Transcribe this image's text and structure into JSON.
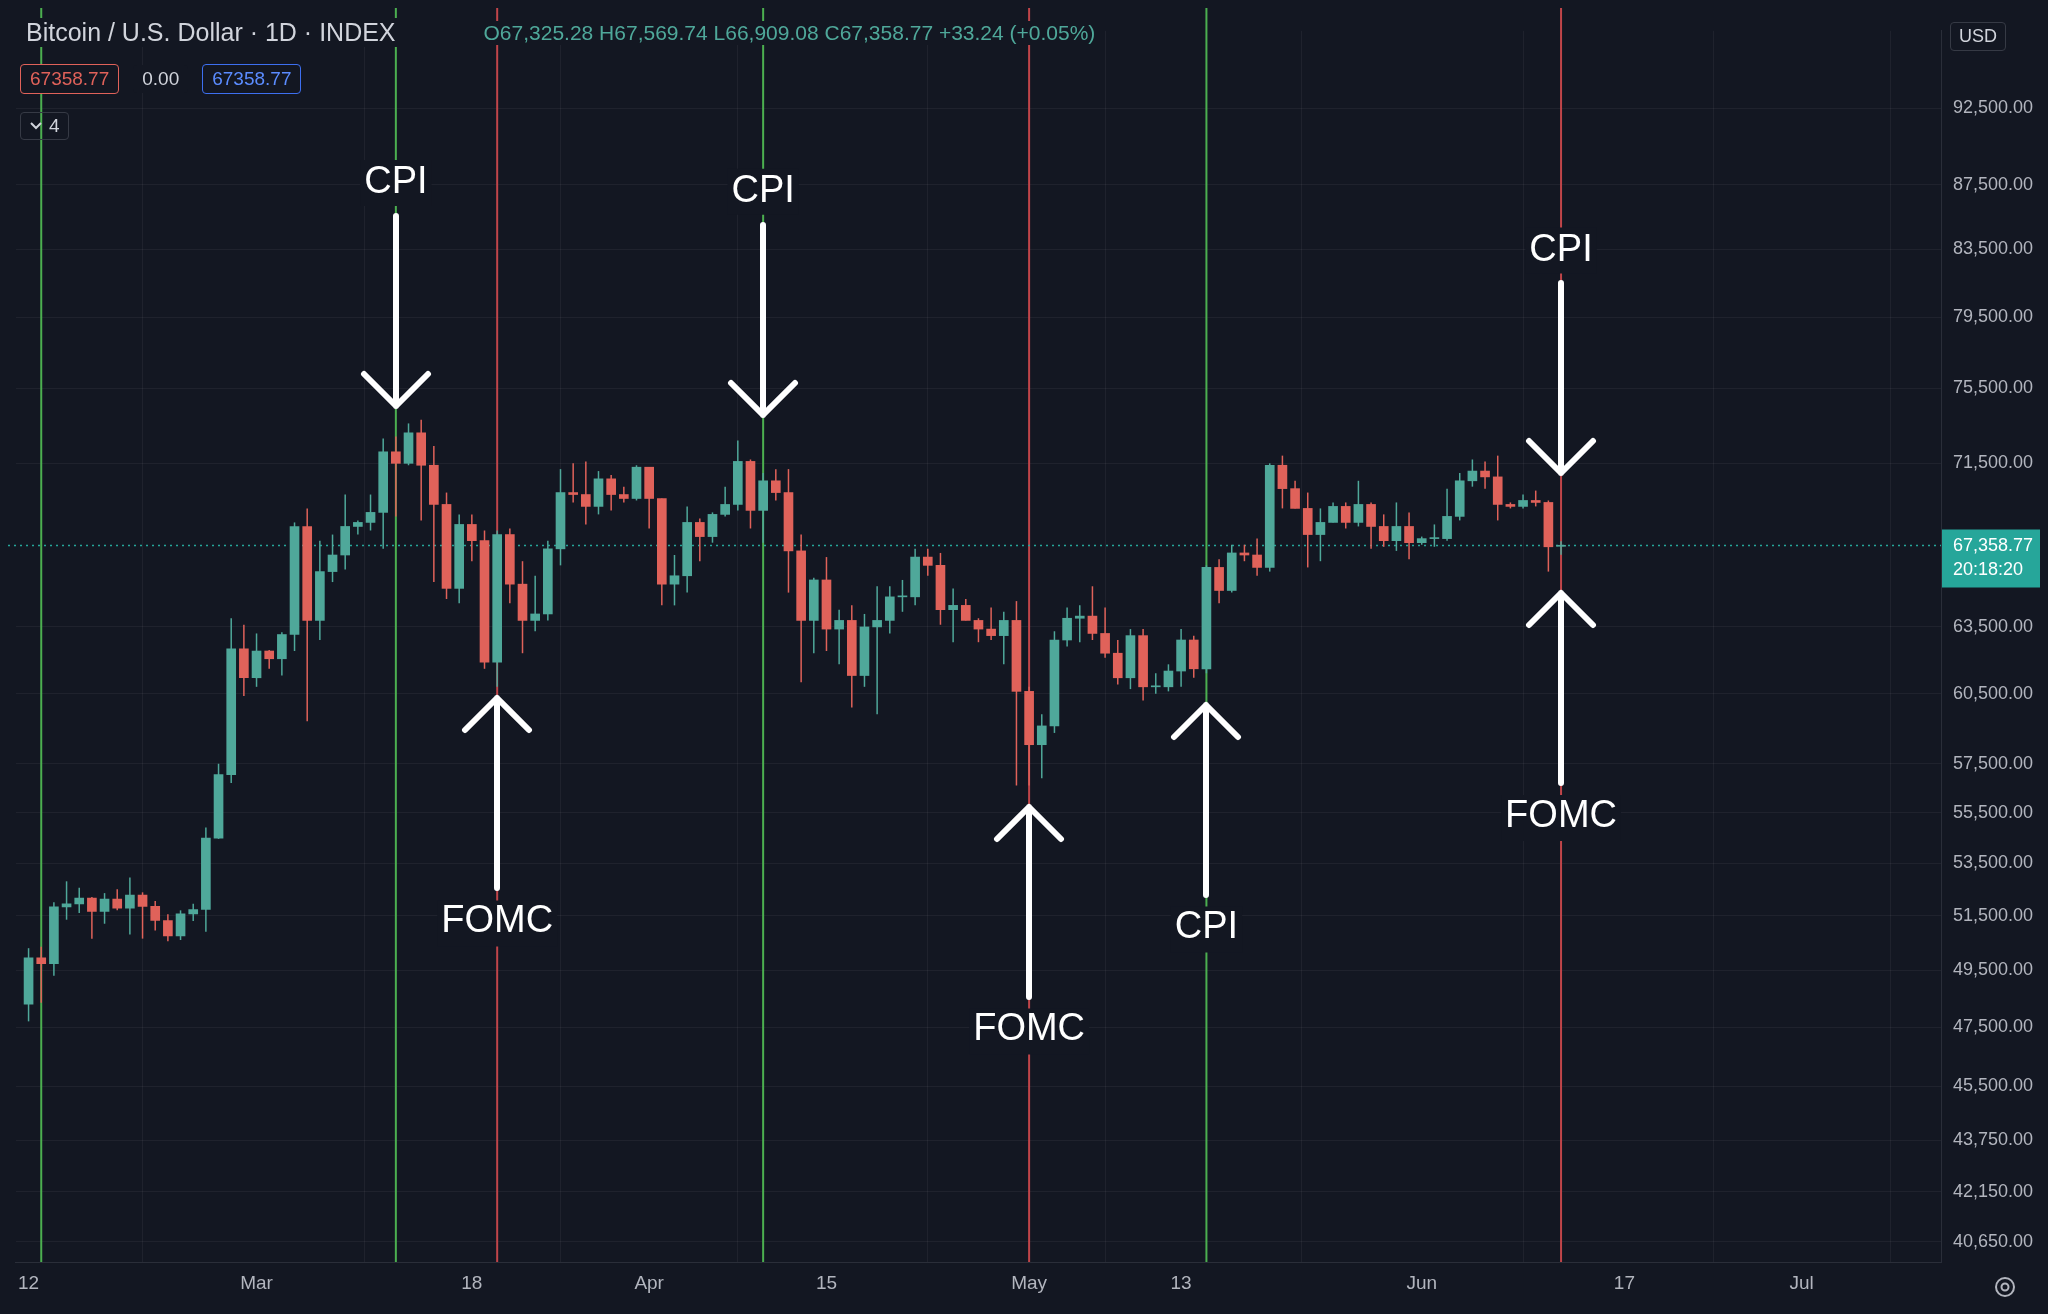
{
  "chart_data": {
    "type": "candlestick",
    "title": "Bitcoin / U.S. Dollar · 1D · INDEX",
    "x": [
      "--02-12",
      "--02-13",
      "--02-14",
      "--02-15",
      "--02-16",
      "--02-17",
      "--02-18",
      "--02-19",
      "--02-20",
      "--02-21",
      "--02-22",
      "--02-23",
      "--02-24",
      "--02-25",
      "--02-26",
      "--02-27",
      "--02-28",
      "--02-29",
      "--03-01",
      "--03-02",
      "--03-03",
      "--03-04",
      "--03-05",
      "--03-06",
      "--03-07",
      "--03-08",
      "--03-09",
      "--03-10",
      "--03-11",
      "--03-12",
      "--03-13",
      "--03-14",
      "--03-15",
      "--03-16",
      "--03-17",
      "--03-18",
      "--03-19",
      "--03-20",
      "--03-21",
      "--03-22",
      "--03-23",
      "--03-24",
      "--03-25",
      "--03-26",
      "--03-27",
      "--03-28",
      "--03-29",
      "--03-30",
      "--03-31",
      "--04-01",
      "--04-02",
      "--04-03",
      "--04-04",
      "--04-05",
      "--04-06",
      "--04-07",
      "--04-08",
      "--04-09",
      "--04-10",
      "--04-11",
      "--04-12",
      "--04-13",
      "--04-14",
      "--04-15",
      "--04-16",
      "--04-17",
      "--04-18",
      "--04-19",
      "--04-20",
      "--04-21",
      "--04-22",
      "--04-23",
      "--04-24",
      "--04-25",
      "--04-26",
      "--04-27",
      "--04-28",
      "--04-29",
      "--04-30",
      "--05-01",
      "--05-02",
      "--05-03",
      "--05-04",
      "--05-05",
      "--05-06",
      "--05-07",
      "--05-08",
      "--05-09",
      "--05-10",
      "--05-11",
      "--05-12",
      "--05-13",
      "--05-14",
      "--05-15",
      "--05-16",
      "--05-17",
      "--05-18",
      "--05-19",
      "--05-20",
      "--05-21",
      "--05-22",
      "--05-23",
      "--05-24",
      "--05-25",
      "--05-26",
      "--05-27",
      "--05-28",
      "--05-29",
      "--05-30",
      "--05-31",
      "--06-01",
      "--06-02",
      "--06-03",
      "--06-04",
      "--06-05",
      "--06-06",
      "--06-07",
      "--06-08",
      "--06-09",
      "--06-10",
      "--06-11",
      "--06-12"
    ],
    "ohlc": [
      [
        48300,
        50300,
        47700,
        49950
      ],
      [
        49950,
        50350,
        48350,
        49740
      ],
      [
        49740,
        52000,
        49300,
        51830
      ],
      [
        51830,
        52800,
        51350,
        51940
      ],
      [
        51940,
        52550,
        51600,
        52160
      ],
      [
        52160,
        52200,
        50650,
        51660
      ],
      [
        51660,
        52350,
        51200,
        52120
      ],
      [
        52120,
        52500,
        51700,
        51780
      ],
      [
        51780,
        52950,
        50800,
        52280
      ],
      [
        52280,
        52380,
        50650,
        51850
      ],
      [
        51850,
        52050,
        50950,
        51320
      ],
      [
        51320,
        51550,
        50550,
        50750
      ],
      [
        50750,
        51700,
        50600,
        51570
      ],
      [
        51570,
        51950,
        51300,
        51730
      ],
      [
        51730,
        54900,
        50900,
        54480
      ],
      [
        54480,
        57500,
        54450,
        57050
      ],
      [
        57050,
        63900,
        56700,
        62500
      ],
      [
        62500,
        63600,
        60400,
        61200
      ],
      [
        61200,
        63200,
        60800,
        62400
      ],
      [
        62400,
        62450,
        61600,
        62050
      ],
      [
        62050,
        63250,
        61300,
        63150
      ],
      [
        63150,
        68500,
        62400,
        68300
      ],
      [
        68300,
        69200,
        59300,
        63800
      ],
      [
        63800,
        67600,
        62900,
        66100
      ],
      [
        66100,
        67900,
        65600,
        66900
      ],
      [
        66900,
        69900,
        66200,
        68300
      ],
      [
        68300,
        68600,
        67900,
        68500
      ],
      [
        68500,
        69900,
        68100,
        69000
      ],
      [
        69000,
        72800,
        67200,
        72100
      ],
      [
        72100,
        72900,
        68800,
        71500
      ],
      [
        71500,
        73600,
        71400,
        73100
      ],
      [
        73100,
        73800,
        68600,
        71400
      ],
      [
        71400,
        72400,
        65600,
        69400
      ],
      [
        69400,
        70000,
        64800,
        65300
      ],
      [
        65300,
        68900,
        64600,
        68400
      ],
      [
        68400,
        68900,
        66600,
        67600
      ],
      [
        67600,
        68100,
        61600,
        61900
      ],
      [
        61900,
        68100,
        60800,
        67900
      ],
      [
        67900,
        68200,
        64600,
        65500
      ],
      [
        65500,
        66600,
        62300,
        63800
      ],
      [
        63800,
        65900,
        63300,
        64100
      ],
      [
        64100,
        67600,
        63800,
        67200
      ],
      [
        67200,
        71200,
        66400,
        70000
      ],
      [
        70000,
        71500,
        69500,
        69900
      ],
      [
        69900,
        71600,
        68400,
        69300
      ],
      [
        69300,
        71100,
        68900,
        70700
      ],
      [
        70700,
        70900,
        69100,
        69900
      ],
      [
        69900,
        70300,
        69500,
        69700
      ],
      [
        69700,
        71400,
        69600,
        71300
      ],
      [
        71300,
        71300,
        68200,
        69700
      ],
      [
        69700,
        69700,
        64500,
        65500
      ],
      [
        65500,
        66900,
        64500,
        65900
      ],
      [
        65900,
        69300,
        65100,
        68500
      ],
      [
        68500,
        68700,
        66600,
        67800
      ],
      [
        67800,
        69000,
        67500,
        68900
      ],
      [
        68900,
        70300,
        68800,
        69400
      ],
      [
        69400,
        72700,
        69100,
        71600
      ],
      [
        71600,
        71700,
        68200,
        69100
      ],
      [
        69100,
        71000,
        67500,
        70600
      ],
      [
        70600,
        71200,
        69600,
        70000
      ],
      [
        70000,
        71200,
        65100,
        67100
      ],
      [
        67100,
        67900,
        61000,
        63800
      ],
      [
        63800,
        65800,
        62300,
        65700
      ],
      [
        65700,
        66800,
        62400,
        63400
      ],
      [
        63400,
        64300,
        61800,
        63800
      ],
      [
        63800,
        64500,
        59900,
        61300
      ],
      [
        61300,
        64100,
        60800,
        63500
      ],
      [
        63500,
        65400,
        59600,
        63800
      ],
      [
        63800,
        65400,
        63200,
        64900
      ],
      [
        64900,
        65700,
        64200,
        64900
      ],
      [
        64900,
        67200,
        64500,
        66800
      ],
      [
        66800,
        67200,
        65900,
        66400
      ],
      [
        66400,
        67000,
        63600,
        64300
      ],
      [
        64300,
        65300,
        62800,
        64500
      ],
      [
        64500,
        64800,
        63800,
        63800
      ],
      [
        63800,
        63900,
        62800,
        63400
      ],
      [
        63400,
        64400,
        62900,
        63100
      ],
      [
        63100,
        64200,
        61800,
        63800
      ],
      [
        63800,
        64700,
        56600,
        60600
      ],
      [
        60600,
        60800,
        56600,
        58300
      ],
      [
        58300,
        59600,
        56900,
        59100
      ],
      [
        59100,
        63300,
        58800,
        62900
      ],
      [
        62900,
        64400,
        62600,
        63900
      ],
      [
        63900,
        64500,
        62800,
        64000
      ],
      [
        64000,
        65400,
        62900,
        63200
      ],
      [
        63200,
        64400,
        62100,
        62300
      ],
      [
        62300,
        62900,
        60900,
        61200
      ],
      [
        61200,
        63400,
        60700,
        63100
      ],
      [
        63100,
        63400,
        60200,
        60800
      ],
      [
        60800,
        61400,
        60500,
        60800
      ],
      [
        60800,
        61800,
        60600,
        61500
      ],
      [
        61500,
        63400,
        60800,
        62900
      ],
      [
        62900,
        63100,
        61200,
        61600
      ],
      [
        61600,
        66400,
        61400,
        66300
      ],
      [
        66300,
        66700,
        64600,
        65200
      ],
      [
        65200,
        67400,
        65100,
        67000
      ],
      [
        67000,
        67400,
        66600,
        66900
      ],
      [
        66900,
        67700,
        65900,
        66300
      ],
      [
        66300,
        71500,
        66100,
        71400
      ],
      [
        71400,
        71900,
        69200,
        70200
      ],
      [
        70200,
        70600,
        69200,
        69200
      ],
      [
        69200,
        70000,
        66300,
        67900
      ],
      [
        67900,
        69200,
        66600,
        68500
      ],
      [
        68500,
        69500,
        68500,
        69300
      ],
      [
        69300,
        69500,
        68200,
        68500
      ],
      [
        68500,
        70600,
        68300,
        69400
      ],
      [
        69400,
        69500,
        67200,
        68300
      ],
      [
        68300,
        68900,
        67300,
        67600
      ],
      [
        67600,
        69500,
        67100,
        68300
      ],
      [
        68300,
        69000,
        66700,
        67500
      ],
      [
        67500,
        67800,
        67400,
        67700
      ],
      [
        67700,
        68400,
        67300,
        67700
      ],
      [
        67700,
        70200,
        67600,
        68800
      ],
      [
        68800,
        71000,
        68600,
        70600
      ],
      [
        70600,
        71700,
        70300,
        71100
      ],
      [
        71100,
        71600,
        70200,
        70800
      ],
      [
        70800,
        71900,
        68600,
        69400
      ],
      [
        69400,
        69500,
        69200,
        69300
      ],
      [
        69300,
        69900,
        69200,
        69600
      ],
      [
        69600,
        70100,
        69300,
        69500
      ],
      [
        69500,
        69600,
        66100,
        67300
      ],
      [
        67325.28,
        67569.74,
        66909.08,
        67358.77
      ]
    ],
    "xlim": [
      "--02-11",
      "--07-12"
    ],
    "xticks": [
      {
        "value": "--02-12",
        "label": "12"
      },
      {
        "value": "--03-01",
        "label": "Mar"
      },
      {
        "value": "--03-18",
        "label": "18"
      },
      {
        "value": "--04-01",
        "label": "Apr"
      },
      {
        "value": "--04-15",
        "label": "15"
      },
      {
        "value": "--05-01",
        "label": "May"
      },
      {
        "value": "--05-13",
        "label": "13"
      },
      {
        "value": "--06-01",
        "label": "Jun"
      },
      {
        "value": "--06-17",
        "label": "17"
      },
      {
        "value": "--07-01",
        "label": "Jul"
      }
    ],
    "ylim": [
      40060,
      97850
    ],
    "yticks": [
      {
        "value": 92500,
        "label": "92,500.00"
      },
      {
        "value": 87500,
        "label": "87,500.00"
      },
      {
        "value": 83500,
        "label": "83,500.00"
      },
      {
        "value": 79500,
        "label": "79,500.00"
      },
      {
        "value": 75500,
        "label": "75,500.00"
      },
      {
        "value": 71500,
        "label": "71,500.00"
      },
      {
        "value": 63500,
        "label": "63,500.00"
      },
      {
        "value": 60500,
        "label": "60,500.00"
      },
      {
        "value": 57500,
        "label": "57,500.00"
      },
      {
        "value": 55500,
        "label": "55,500.00"
      },
      {
        "value": 53500,
        "label": "53,500.00"
      },
      {
        "value": 51500,
        "label": "51,500.00"
      },
      {
        "value": 49500,
        "label": "49,500.00"
      },
      {
        "value": 47500,
        "label": "47,500.00"
      },
      {
        "value": 45500,
        "label": "45,500.00"
      },
      {
        "value": 43750,
        "label": "43,750.00"
      },
      {
        "value": 42150,
        "label": "42,150.00"
      },
      {
        "value": 40650,
        "label": "40,650.00"
      }
    ],
    "log": true,
    "grid": true,
    "legend": false,
    "ref_lines": [
      {
        "axis": "x",
        "value": "--02-13",
        "color": "#4caf50"
      },
      {
        "axis": "x",
        "value": "--03-12",
        "color": "#4caf50"
      },
      {
        "axis": "x",
        "value": "--03-20",
        "color": "#c0454a"
      },
      {
        "axis": "x",
        "value": "--04-10",
        "color": "#4caf50"
      },
      {
        "axis": "x",
        "value": "--05-01",
        "color": "#c0454a"
      },
      {
        "axis": "x",
        "value": "--05-15",
        "color": "#4caf50"
      },
      {
        "axis": "x",
        "value": "--06-12",
        "color": "#c0454a"
      },
      {
        "axis": "y",
        "value": 67358.77,
        "label": "67,358.77",
        "color": "#26a69a",
        "line_style": "dotted"
      }
    ],
    "annotations": [
      "O67,325.28 H67,569.74 L66,909.08 C67,358.77 +33.24 (+0.05%)",
      "67358.77",
      "0.00",
      "67358.77",
      "4",
      "USD",
      "20:18:20",
      {
        "text": "CPI",
        "x": "--03-12",
        "y": 74540
      },
      {
        "text": "FOMC",
        "x": "--03-20",
        "y": 60290
      },
      {
        "text": "CPI",
        "x": "--04-10",
        "y": 74060
      },
      {
        "text": "FOMC",
        "x": "--05-01",
        "y": 55740
      },
      {
        "text": "CPI",
        "x": "--05-15",
        "y": 60020
      },
      {
        "text": "CPI",
        "x": "--06-12",
        "y": 70980
      },
      {
        "text": "FOMC",
        "x": "--06-12",
        "y": 65080
      }
    ]
  }
}
